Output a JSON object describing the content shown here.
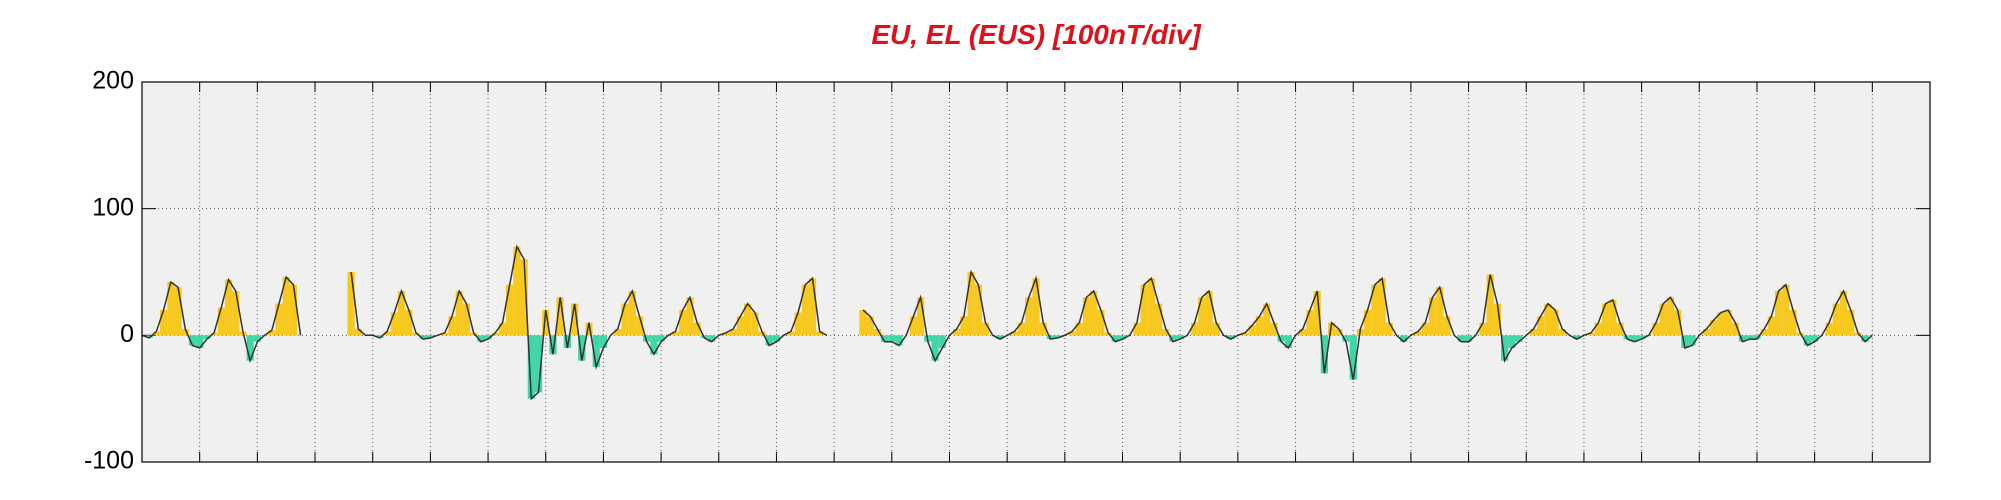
{
  "chart_data": {
    "type": "area",
    "title": "EU, EL (EUS)  [100nT/div]",
    "x": [
      0,
      0.125,
      0.25,
      0.375,
      0.5,
      0.625,
      0.75,
      0.875,
      1,
      1.125,
      1.25,
      1.375,
      1.5,
      1.625,
      1.75,
      1.875,
      2,
      2.125,
      2.25,
      2.375,
      2.5,
      2.625,
      2.75,
      2.875,
      3,
      3.125,
      3.25,
      3.375,
      3.5,
      3.625,
      3.75,
      3.875,
      4,
      4.125,
      4.25,
      4.375,
      4.5,
      4.625,
      4.75,
      4.875,
      5,
      5.125,
      5.25,
      5.375,
      5.5,
      5.625,
      5.75,
      5.875,
      6,
      6.125,
      6.25,
      6.375,
      6.5,
      6.625,
      6.75,
      6.875,
      7,
      7.125,
      7.25,
      7.375,
      7.5,
      7.625,
      7.75,
      7.875,
      8,
      8.125,
      8.25,
      8.375,
      8.5,
      8.625,
      8.75,
      8.875,
      9,
      9.125,
      9.25,
      9.375,
      9.5,
      9.625,
      9.75,
      9.875,
      10,
      10.125,
      10.25,
      10.375,
      10.5,
      10.625,
      10.75,
      10.875,
      11,
      11.125,
      11.25,
      11.375,
      11.5,
      11.625,
      11.75,
      11.875,
      12,
      12.125,
      12.25,
      12.375,
      12.5,
      12.625,
      12.75,
      12.875,
      13,
      13.125,
      13.25,
      13.375,
      13.5,
      13.625,
      13.75,
      13.875,
      14,
      14.125,
      14.25,
      14.375,
      14.5,
      14.625,
      14.75,
      14.875,
      15,
      15.125,
      15.25,
      15.375,
      15.5,
      15.625,
      15.75,
      15.875,
      16,
      16.125,
      16.25,
      16.375,
      16.5,
      16.625,
      16.75,
      16.875,
      17,
      17.125,
      17.25,
      17.375,
      17.5,
      17.625,
      17.75,
      17.875,
      18,
      18.125,
      18.25,
      18.375,
      18.5,
      18.625,
      18.75,
      18.875,
      19,
      19.125,
      19.25,
      19.375,
      19.5,
      19.625,
      19.75,
      19.875,
      20,
      20.125,
      20.25,
      20.375,
      20.5,
      20.625,
      20.75,
      20.875,
      21,
      21.125,
      21.25,
      21.375,
      21.5,
      21.625,
      21.75,
      21.875,
      22,
      22.125,
      22.25,
      22.375,
      22.5,
      22.625,
      22.75,
      22.875,
      23,
      23.125,
      23.25,
      23.375,
      23.5,
      23.625,
      23.75,
      23.875,
      24,
      24.125,
      24.25,
      24.375,
      24.5,
      24.625,
      24.75,
      24.875,
      25,
      25.125,
      25.25,
      25.375,
      25.5,
      25.625,
      25.75,
      25.875,
      26,
      26.125,
      26.25,
      26.375,
      26.5,
      26.625,
      26.75,
      26.875,
      27,
      27.125,
      27.25,
      27.375,
      27.5,
      27.625,
      27.75,
      27.875,
      28,
      28.125,
      28.25,
      28.375,
      28.5,
      28.625,
      28.75,
      28.875,
      29,
      29.125,
      29.25,
      29.375,
      29.5,
      29.625,
      29.75,
      29.875,
      30
    ],
    "values": [
      0,
      -2,
      3,
      20,
      42,
      38,
      5,
      -8,
      -10,
      -3,
      2,
      22,
      44,
      35,
      3,
      -20,
      -5,
      0,
      4,
      25,
      46,
      40,
      0,
      null,
      null,
      null,
      null,
      null,
      null,
      50,
      5,
      0,
      0,
      -2,
      3,
      18,
      35,
      20,
      2,
      -3,
      -2,
      0,
      2,
      15,
      35,
      25,
      2,
      -5,
      -3,
      2,
      10,
      40,
      70,
      60,
      -50,
      -45,
      20,
      -15,
      30,
      -10,
      25,
      -20,
      10,
      -25,
      -10,
      0,
      5,
      25,
      35,
      15,
      -5,
      -15,
      -5,
      0,
      3,
      20,
      30,
      10,
      -2,
      -5,
      0,
      2,
      5,
      15,
      25,
      18,
      3,
      -8,
      -5,
      0,
      3,
      18,
      40,
      45,
      3,
      0,
      null,
      null,
      null,
      null,
      20,
      15,
      5,
      -5,
      -5,
      -8,
      0,
      15,
      30,
      -5,
      -20,
      -10,
      0,
      5,
      15,
      50,
      40,
      10,
      0,
      -3,
      0,
      3,
      10,
      30,
      45,
      10,
      -3,
      -2,
      0,
      3,
      10,
      30,
      35,
      20,
      2,
      -5,
      -3,
      0,
      10,
      40,
      45,
      25,
      5,
      -5,
      -3,
      0,
      10,
      30,
      35,
      10,
      0,
      -3,
      0,
      2,
      8,
      15,
      25,
      10,
      -5,
      -10,
      0,
      5,
      20,
      35,
      -30,
      10,
      5,
      -5,
      -35,
      5,
      20,
      40,
      45,
      10,
      0,
      -5,
      0,
      3,
      10,
      30,
      38,
      15,
      0,
      -5,
      -5,
      0,
      10,
      48,
      25,
      -20,
      -10,
      -5,
      0,
      5,
      15,
      25,
      20,
      5,
      0,
      -3,
      0,
      2,
      10,
      25,
      28,
      10,
      -3,
      -5,
      -3,
      0,
      10,
      25,
      30,
      20,
      -10,
      -8,
      0,
      5,
      12,
      18,
      20,
      10,
      -5,
      -3,
      -3,
      5,
      15,
      35,
      40,
      20,
      2,
      -8,
      -5,
      0,
      10,
      25,
      35,
      20,
      2,
      -5,
      0
    ],
    "positive_color": "#f7c81e",
    "negative_color": "#3fd6a8",
    "line_color": "#333333",
    "title_color": "#e0101a",
    "xlim": [
      0,
      31
    ],
    "xticks": [
      1,
      2,
      3,
      4,
      5,
      6,
      7,
      8,
      9,
      10,
      11,
      12,
      13,
      14,
      15,
      16,
      17,
      18,
      19,
      20,
      21,
      22,
      23,
      24,
      25,
      26,
      27,
      28,
      29,
      30
    ],
    "ylim": [
      -100,
      200
    ],
    "yticks": [
      -100,
      0,
      100,
      200
    ],
    "grid": true
  }
}
